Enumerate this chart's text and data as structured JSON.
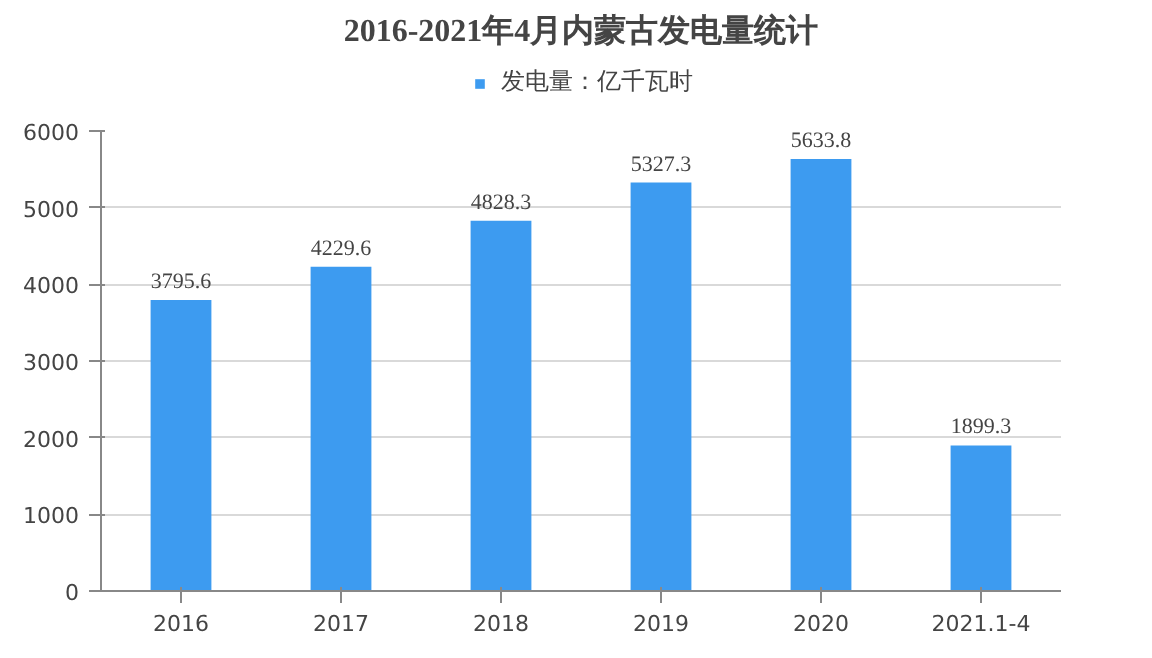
{
  "chart_data": {
    "type": "bar",
    "title": "2016-2021年4月内蒙古发电量统计",
    "categories": [
      "2016",
      "2017",
      "2018",
      "2019",
      "2020",
      "2021.1-4"
    ],
    "series": [
      {
        "name": "发电量：亿千瓦时",
        "color": "#3d9bf0",
        "values": [
          3795.6,
          4229.6,
          4828.3,
          5327.3,
          5633.8,
          1899.3
        ]
      }
    ],
    "ylim": [
      0,
      6000
    ],
    "yticks": [
      0,
      1000,
      2000,
      3000,
      4000,
      5000,
      6000
    ],
    "grid": "y",
    "legend": "top",
    "data_labels": true
  }
}
